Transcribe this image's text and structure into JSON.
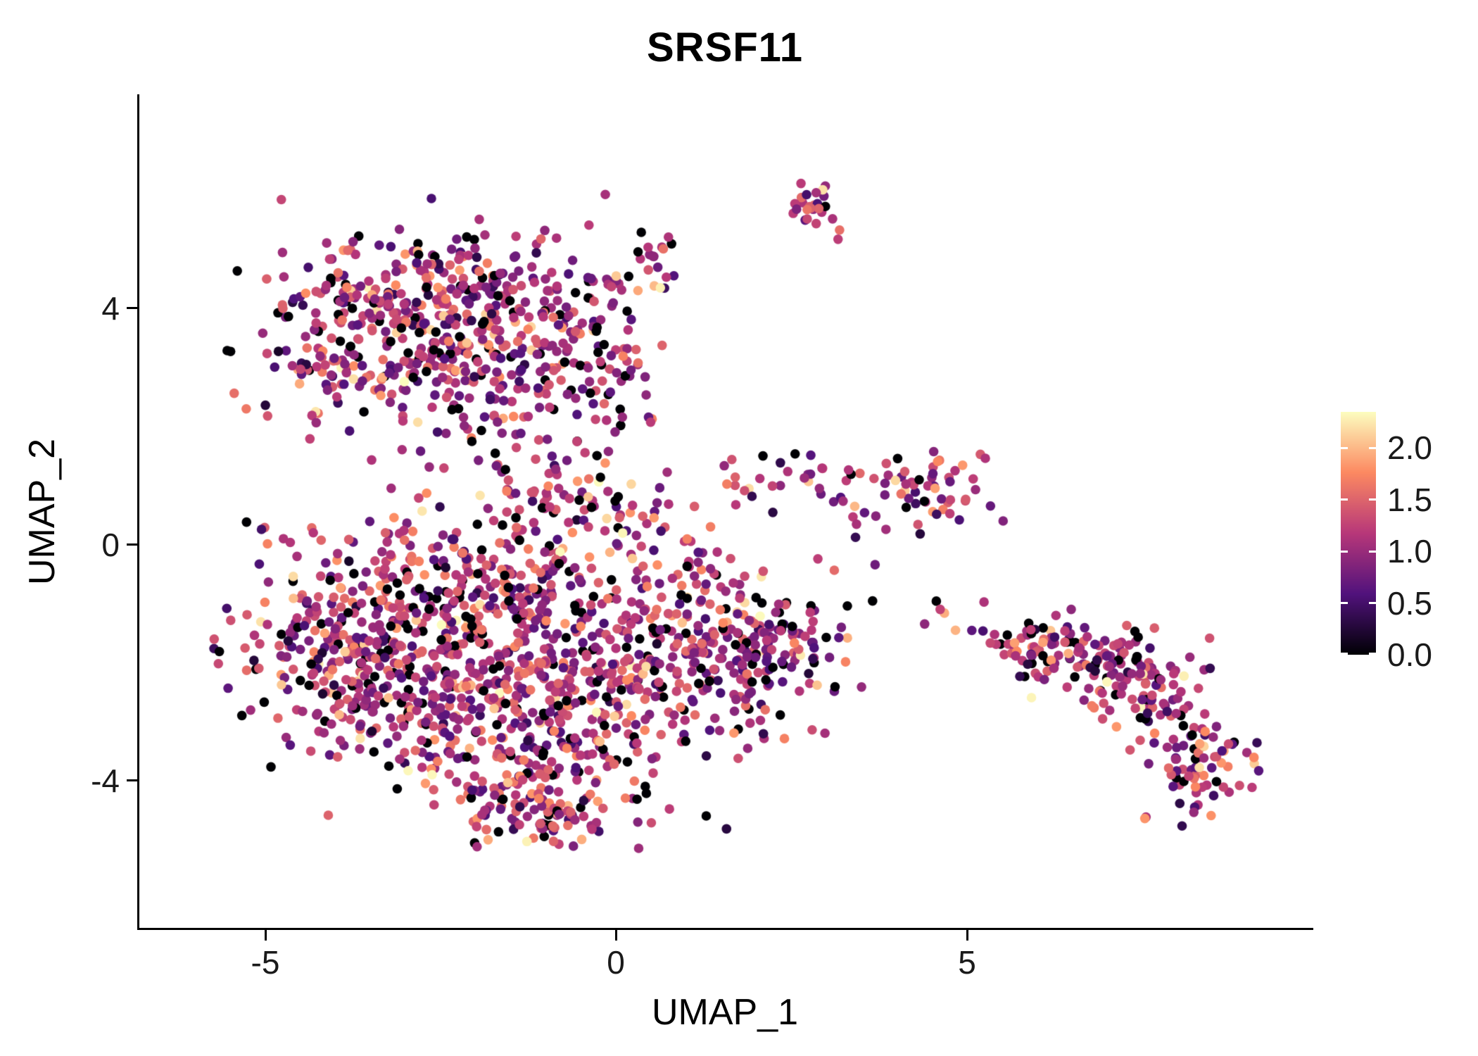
{
  "chart_data": {
    "type": "scatter",
    "title": "SRSF11",
    "xlabel": "UMAP_1",
    "ylabel": "UMAP_2",
    "x_ticks": [
      {
        "value": -5,
        "label": "-5"
      },
      {
        "value": 0,
        "label": "0"
      },
      {
        "value": 5,
        "label": "5"
      }
    ],
    "y_ticks": [
      {
        "value": 4,
        "label": "4"
      },
      {
        "value": 0,
        "label": "0"
      },
      {
        "value": -4,
        "label": "-4"
      }
    ],
    "xlim": [
      -6.8,
      9.9
    ],
    "ylim": [
      -6.5,
      7.6
    ],
    "grid": false,
    "legend_position": "right",
    "legend": {
      "ticks": [
        "2.0",
        "1.5",
        "1.0",
        "0.5",
        "0.0"
      ],
      "tick_values": [
        2.0,
        1.5,
        1.0,
        0.5,
        0.0
      ],
      "range": [
        0,
        2.35
      ]
    },
    "colormap": {
      "name": "magma",
      "stops": [
        {
          "pos": 0.0,
          "color": "#000004"
        },
        {
          "pos": 0.25,
          "color": "#51127c"
        },
        {
          "pos": 0.5,
          "color": "#b73779"
        },
        {
          "pos": 0.75,
          "color": "#fc8961"
        },
        {
          "pos": 1.0,
          "color": "#fcfdbf"
        }
      ]
    },
    "expression_range": [
      0.0,
      2.3
    ],
    "n_points_approx": 2600,
    "point_radius_px": 6.8,
    "clusters": [
      {
        "x": -2.6,
        "y": 4.2,
        "sx": 1.05,
        "sy": 0.55,
        "n": 260
      },
      {
        "x": -3.5,
        "y": 3.1,
        "sx": 0.8,
        "sy": 0.55,
        "n": 140
      },
      {
        "x": -1.6,
        "y": 2.9,
        "sx": 0.85,
        "sy": 0.75,
        "n": 170
      },
      {
        "x": -0.35,
        "y": 3.5,
        "sx": 0.5,
        "sy": 0.85,
        "n": 90
      },
      {
        "x": 0.5,
        "y": 4.8,
        "sx": 0.3,
        "sy": 0.35,
        "n": 18
      },
      {
        "x": 2.85,
        "y": 5.75,
        "sx": 0.2,
        "sy": 0.18,
        "n": 26
      },
      {
        "x": -0.6,
        "y": 0.7,
        "sx": 0.7,
        "sy": 0.5,
        "n": 80
      },
      {
        "x": -3.7,
        "y": -1.7,
        "sx": 0.85,
        "sy": 0.85,
        "n": 260
      },
      {
        "x": -2.2,
        "y": -0.6,
        "sx": 0.95,
        "sy": 0.65,
        "n": 190
      },
      {
        "x": -2.3,
        "y": -2.6,
        "sx": 1.0,
        "sy": 0.8,
        "n": 220
      },
      {
        "x": -1.0,
        "y": -3.7,
        "sx": 0.85,
        "sy": 0.6,
        "n": 150
      },
      {
        "x": -1.2,
        "y": -1.6,
        "sx": 0.8,
        "sy": 0.8,
        "n": 160
      },
      {
        "x": 0.2,
        "y": -2.5,
        "sx": 0.7,
        "sy": 0.9,
        "n": 120
      },
      {
        "x": -1.2,
        "y": -4.6,
        "sx": 0.5,
        "sy": 0.3,
        "n": 55
      },
      {
        "x": 1.4,
        "y": -1.9,
        "sx": 0.7,
        "sy": 0.7,
        "n": 150
      },
      {
        "x": 2.3,
        "y": -1.7,
        "sx": 0.5,
        "sy": 0.55,
        "n": 80
      },
      {
        "x": 1.0,
        "y": -0.5,
        "sx": 0.5,
        "sy": 0.4,
        "n": 45
      },
      {
        "x": 4.4,
        "y": 0.9,
        "sx": 0.45,
        "sy": 0.4,
        "n": 55
      },
      {
        "x": 2.7,
        "y": 1.3,
        "sx": 0.4,
        "sy": 0.25,
        "n": 18
      },
      {
        "x": 1.8,
        "y": 1.1,
        "sx": 0.3,
        "sy": 0.25,
        "n": 10
      },
      {
        "x": 3.4,
        "y": 0.9,
        "sx": 0.35,
        "sy": 0.45,
        "n": 10
      },
      {
        "x": 4.7,
        "y": -1.3,
        "sx": 0.8,
        "sy": 0.3,
        "n": 12
      },
      {
        "x": 5.8,
        "y": -1.7,
        "sx": 0.3,
        "sy": 0.2,
        "n": 22
      },
      {
        "x": 6.6,
        "y": -1.85,
        "sx": 0.55,
        "sy": 0.3,
        "n": 85
      },
      {
        "x": 7.5,
        "y": -2.4,
        "sx": 0.5,
        "sy": 0.45,
        "n": 85
      },
      {
        "x": 8.3,
        "y": -3.7,
        "sx": 0.38,
        "sy": 0.4,
        "n": 75
      }
    ]
  }
}
